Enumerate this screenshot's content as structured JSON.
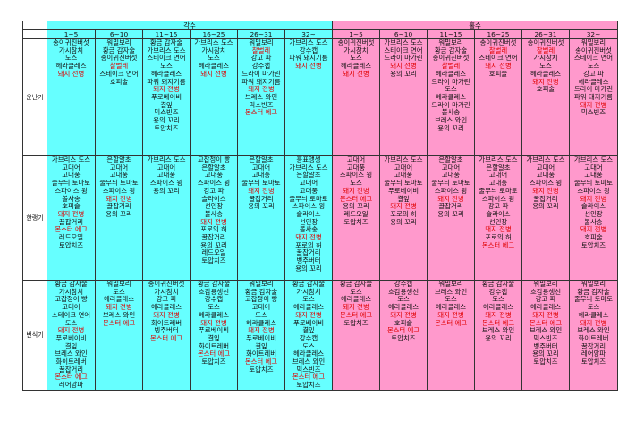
{
  "colors": {
    "odd_header": "#66ffff",
    "even_header": "#ff99cc",
    "highlight_text": "#e00000"
  },
  "header": {
    "odd_label": "각수",
    "even_label": "홀수",
    "odd_ranges": [
      "1~5",
      "6~10",
      "11~15",
      "16~25",
      "26~31",
      "32~"
    ],
    "even_ranges": [
      "1~5",
      "6~10",
      "11~15",
      "16~25",
      "26~31",
      "32~"
    ]
  },
  "rows": [
    {
      "label": "운난기",
      "cells": [
        [
          "송이귀진버섯",
          "가시참치",
          "도스",
          "헤라클레스",
          "!돼지 전병"
        ],
        [
          "워밀보리",
          "황금 감자술",
          "송이귀진버섯",
          "!찰벌레",
          "스테이크 연어",
          "호피술"
        ],
        [
          "황금 감자술",
          "가브리스 도스",
          "스테이크 연어",
          "도스",
          "헤라클레스",
          "파워 돼지기름",
          "!돼지 전병",
          "푸로베이비",
          "결잎",
          "믹스빈즈",
          "용의 꼬리",
          "토압치즈"
        ],
        [
          "가브리스 도스",
          "가시참치",
          "도스",
          "헤라클레스",
          "!돼지 전병"
        ],
        [
          "워밀보리",
          "!찰벌레",
          "강고 파",
          "강수캡",
          "드라이 마가린",
          "파워 돼지기름",
          "!돼지 전병",
          "브레스 와인",
          "믹스빈즈",
          "!몬스터 에그"
        ],
        [
          "가브리스 도스",
          "강수캡",
          "파워 돼지기름",
          "!돼지 전병"
        ],
        [
          "송이귀진버섯",
          "가시참치",
          "도스",
          "헤라클레스",
          "!돼지 전병"
        ],
        [
          "가브리스 도스",
          "스테이크 연어",
          "드라이 마가린",
          "!돼지 전병",
          "용의 꼬리"
        ],
        [
          "워밀보리",
          "황금 감자술",
          "송이귀진버섯",
          "!찰벌레",
          "헤라클레스",
          "드라이 마가린",
          "도스",
          "헤라클레스",
          "드라이 마가린",
          "볼사송",
          "브레스 와인",
          "용의 꼬리"
        ],
        [
          "송이귀진버섯",
          "!찰벌레",
          "스테이크 연어",
          "!돼지 전병",
          "호피술"
        ],
        [
          "송이귀진버섯",
          "!찰벌레",
          "가시참치",
          "도스",
          "헤라클레스",
          "!돼지 전병",
          "호피술"
        ],
        [
          "워밀보리",
          "송이귀진버섯",
          "스테이크 연어",
          "도스",
          "강고 파",
          "헤라클레스",
          "드라이 마가린",
          "파워 돼지기름",
          "!돼지 전병",
          "믹스빈즈"
        ]
      ]
    },
    {
      "label": "한랭기",
      "cells": [
        [
          "가브리스 도스",
          "고대어",
          "고대풍",
          "줄무늬 토마토",
          "스파이스 윙",
          "볼사송",
          "호피술",
          "!돼지 전병",
          "꿀잡거리",
          "!몬스터 에그",
          "레드오일",
          "토압치즈"
        ],
        [
          "은할알초",
          "고대어",
          "고대풍",
          "줄무늬 토마토",
          "스파이스 윙",
          "!돼지 전병",
          "꿀잡거리",
          "용의 꼬리"
        ],
        [
          "가브리스 도스",
          "고대어",
          "고대풍",
          "스파이스 윙",
          "용의 꼬리"
        ],
        [
          "고잡정이 빵",
          "은할알초",
          "고대풍",
          "스파이스 윙",
          "강고 파",
          "슬라이스",
          "선인장",
          "볼사송",
          "!돼지 전병",
          "포로의 허",
          "꿀잡거리",
          "용의 꼬리",
          "레드오일",
          "토압치즈"
        ],
        [
          "은할알초",
          "고대어",
          "고대풍",
          "줄무늬 토마토",
          "!돼지 전병",
          "꿀잡거리",
          "용의 꼬리"
        ],
        [
          "흥표앵생",
          "가브리스 도스",
          "은할알초",
          "고대어",
          "고대풍",
          "줄무늬 토마토",
          "스파이스 윙",
          "슬라이스",
          "선인장",
          "볼사송",
          "!돼지 전병",
          "포로의 허",
          "꿀잡거리",
          "벵주버터",
          "용의 꼬리"
        ],
        [
          "고대어",
          "고대풍",
          "스파이스 윙",
          "도스",
          "!돼지 전병",
          "!몬스터 에그",
          "용의 꼬리",
          "레드오일",
          "토압치즈"
        ],
        [
          "가브리스 도스",
          "고대어",
          "고대풍",
          "줄무늬 토마토",
          "푸로베이비",
          "결잎",
          "!돼지 전병",
          "포로의 허",
          "용의 꼬리"
        ],
        [
          "은할알초",
          "고대어",
          "고대풍",
          "줄무늬 토마토",
          "스파이스 윙",
          "!돼지 전병",
          "꿀잡거리",
          "용의 꼬리"
        ],
        [
          "가브리스 도스",
          "은할알초",
          "고대어",
          "고대풍",
          "줄무늬 토마토",
          "스파이스 윙",
          "강고 파",
          "슬라이스",
          "선인장",
          "!돼지 전병",
          "포로의 허",
          "!몬스터 에그"
        ],
        [
          "가브리스 도스",
          "고대어",
          "고대풍",
          "스파이스 윙",
          "!돼지 전병",
          "꿀잡거리",
          "용의 꼬리"
        ],
        [
          "가브리스 도스",
          "고대어",
          "고대풍",
          "줄무늬 토마토",
          "스파이스 윙",
          "!돼지 전병",
          "슬라이스",
          "선인장",
          "볼사송",
          "!돼지 전병",
          "호피술",
          "토압치즈"
        ]
      ]
    },
    {
      "label": "번식기",
      "cells": [
        [
          "황금 감자술",
          "가시참치",
          "고잡정이 빵",
          "고대어",
          "스테이크 연어",
          "도스",
          "!돼지 전병",
          "푸로베이비",
          "결잎",
          "브레스 와인",
          "화이트레버",
          "꿀잡거리",
          "!몬스터 에그",
          "레어앙파"
        ],
        [
          "워밀보리",
          "도스",
          "헤라클레스",
          "!돼지 전병",
          "브레스 와인",
          "!몬스터 에그"
        ],
        [
          "송이귀진버섯",
          "가시참치",
          "강고 파",
          "헤라클레스",
          "!돼지 전병",
          "화이트레버",
          "벵주버터",
          "!몬스터 에그"
        ],
        [
          "황금 감자술",
          "흐감용생선",
          "강수캡",
          "도스",
          "헤라클레스",
          "!돼지 전병",
          "푸로베이비",
          "결잎",
          "화이트레버",
          "!몬스터 에그",
          "토압치즈"
        ],
        [
          "워밀보리",
          "황금 감자술",
          "고잡정이 빵",
          "고대어",
          "도스",
          "헤라클레스",
          "!돼지 전병",
          "푸로베이비",
          "결잎",
          "화이트레버",
          "!몬스터 에그",
          "토압치즈"
        ],
        [
          "황금 감자술",
          "가시참치",
          "도스",
          "헤라클레스",
          "!돼지 전병",
          "푸로베이비",
          "결잎",
          "강수캡",
          "도스",
          "헤라클레스",
          "브레스 와인",
          "믹스빈즈",
          "!몬스터 에그",
          "토압치즈"
        ],
        [
          "황금 감자술",
          "도스",
          "헤라클레스",
          "!돼지 전병",
          "!몬스터 에그",
          "토압치즈"
        ],
        [
          "강수캡",
          "흐감용생선",
          "도스",
          "헤라클레스",
          "!돼지 전병",
          "호피술",
          "!몬스터 에그",
          "토압치즈"
        ],
        [
          "워밀보리",
          "브레스 와인",
          "도스",
          "헤라클레스",
          "!돼지 전병",
          "!몬스터 에그"
        ],
        [
          "황금 감자술",
          "강수캡",
          "도스",
          "헤라클레스",
          "!돼지 전병",
          "!몬스터 에그",
          "브레스 와인",
          "용의 꼬리"
        ],
        [
          "워밀보리",
          "흐감용생선",
          "강고 파",
          "헤라클레스",
          "!돼지 전병",
          "!몬스터 에그",
          "브레스 와인",
          "믹스빈즈",
          "벵주버터",
          "용의 꼬리",
          "토압치즈"
        ],
        [
          "워밀보리",
          "황금 감자술",
          "줄무늬 토마토",
          "도스",
          "헤라클레스",
          "!돼지 전병",
          "브레스 와인",
          "화이트레버",
          "꿀잡거리",
          "레어앙파",
          "토압치즈"
        ]
      ]
    }
  ]
}
